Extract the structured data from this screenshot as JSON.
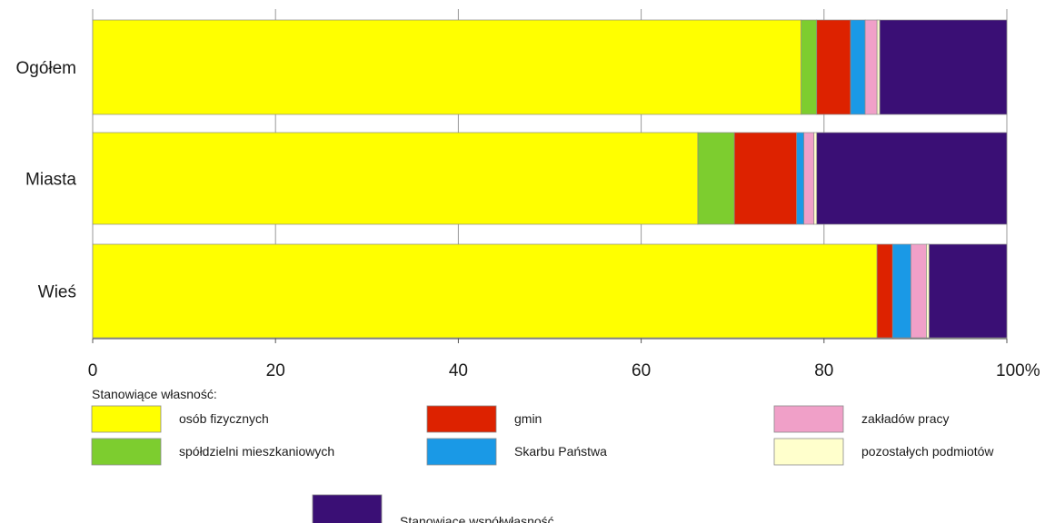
{
  "chart_data": {
    "type": "bar",
    "orientation": "horizontal",
    "stacked": true,
    "categories": [
      "Ogółem",
      "Miasta",
      "Wieś"
    ],
    "xlim": [
      0,
      100
    ],
    "x_ticks": [
      "0",
      "20",
      "40",
      "60",
      "80",
      "100%"
    ],
    "grid": "vertical",
    "legend_title": "Stanowiące własność:",
    "series": [
      {
        "name": "osób fizycznych",
        "color": "#ffff00",
        "values": [
          77.5,
          66.2,
          85.8
        ]
      },
      {
        "name": "spółdzielni mieszkaniowych",
        "color": "#7dcd2f",
        "values": [
          1.7,
          4.0,
          0.0
        ]
      },
      {
        "name": "gmin",
        "color": "#dd2200",
        "values": [
          3.7,
          6.8,
          1.7
        ]
      },
      {
        "name": "Skarbu Państwa",
        "color": "#1a99e6",
        "values": [
          1.6,
          0.8,
          2.0
        ]
      },
      {
        "name": "zakładów pracy",
        "color": "#f0a0c8",
        "values": [
          1.3,
          1.1,
          1.7
        ]
      },
      {
        "name": "pozostałych podmiotów",
        "color": "#ffffcc",
        "values": [
          0.3,
          0.3,
          0.3
        ]
      },
      {
        "name": "Stanowiące współwłasność",
        "color": "#3a0f75",
        "values": [
          13.9,
          20.8,
          8.5
        ]
      }
    ]
  }
}
